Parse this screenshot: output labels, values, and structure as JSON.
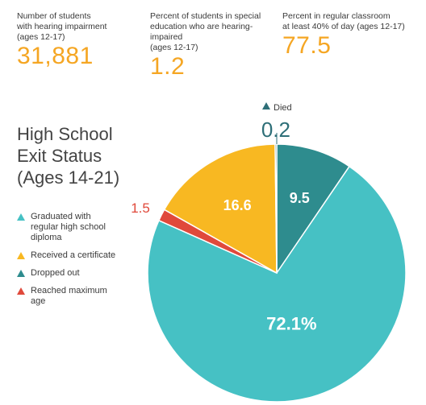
{
  "stats": [
    {
      "label_lines": [
        "Number of students",
        "with hearing impairment",
        "(ages 12-17)"
      ],
      "value": "31,881"
    },
    {
      "label_lines": [
        "Percent of students in special",
        "education who are hearing-impaired",
        "(ages 12-17)"
      ],
      "value": "1.2"
    },
    {
      "label_lines": [
        "Percent in regular classroom",
        "at least 40% of day (ages 12-17)"
      ],
      "value": "77.5"
    }
  ],
  "colors": {
    "stat_value": "#f5a623",
    "graduated": "#46c1c4",
    "certificate": "#f8b822",
    "dropped": "#2e8c8e",
    "maximum_age": "#e0493b",
    "died": "#2e6f78"
  },
  "chart_data": {
    "type": "pie",
    "title_lines": [
      "High School",
      "Exit Status",
      "(Ages 14-21)"
    ],
    "slices": [
      {
        "name": "Dropped out",
        "value": 9.5,
        "label": "9.5",
        "color": "#2e8c8e"
      },
      {
        "name": "Graduated with regular high school diploma",
        "value": 72.1,
        "label": "72.1%",
        "color": "#46c1c4"
      },
      {
        "name": "Reached maximum age",
        "value": 1.5,
        "label": "1.5",
        "color": "#e0493b"
      },
      {
        "name": "Received a certificate",
        "value": 16.6,
        "label": "16.6",
        "color": "#f8b822"
      },
      {
        "name": "Died",
        "value": 0.2,
        "label": "0.2",
        "color": "#2e6f78"
      }
    ],
    "legend": [
      {
        "lines": [
          "Graduated with",
          "regular high school",
          "diploma"
        ],
        "color": "#46c1c4"
      },
      {
        "lines": [
          "Received a certificate"
        ],
        "color": "#f8b822"
      },
      {
        "lines": [
          "Dropped out"
        ],
        "color": "#2e8c8e"
      },
      {
        "lines": [
          "Reached maximum",
          "age"
        ],
        "color": "#e0493b"
      }
    ],
    "died_label": "Died",
    "legend_position": "left"
  }
}
